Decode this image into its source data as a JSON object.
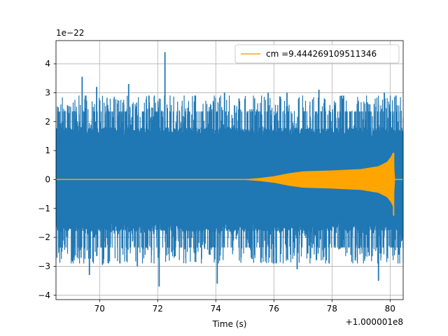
{
  "chart_data": {
    "type": "line",
    "title": "",
    "xlabel": "Time (s)",
    "ylabel": "",
    "x_offset_label": "+1.000001e8",
    "y_scale_label": "1e−22",
    "xlim": [
      68.5,
      80.45
    ],
    "ylim": [
      -4.15,
      4.8
    ],
    "x_ticks": [
      70,
      72,
      74,
      76,
      78,
      80
    ],
    "x_tick_labels": [
      "70",
      "72",
      "74",
      "76",
      "78",
      "80"
    ],
    "y_ticks": [
      -4,
      -3,
      -2,
      -1,
      0,
      1,
      2,
      3,
      4
    ],
    "y_tick_labels": [
      "−4",
      "−3",
      "−2",
      "−1",
      "0",
      "1",
      "2",
      "3",
      "4"
    ],
    "grid": true,
    "legend_position": "top-right",
    "series": [
      {
        "name": "",
        "color": "#1f77b4",
        "kind": "noise",
        "x_range": [
          68.5,
          80.45
        ],
        "envelope_typical": 1.5,
        "envelope_max": 2.35,
        "peaks": [
          {
            "x": 68.95,
            "y": 2.3
          },
          {
            "x": 69.05,
            "y": -2.8
          },
          {
            "x": 69.4,
            "y": 3.55
          },
          {
            "x": 69.65,
            "y": -3.3
          },
          {
            "x": 69.9,
            "y": 3.2
          },
          {
            "x": 70.1,
            "y": -2.95
          },
          {
            "x": 70.5,
            "y": 2.8
          },
          {
            "x": 70.7,
            "y": -2.9
          },
          {
            "x": 71.0,
            "y": 3.3
          },
          {
            "x": 71.3,
            "y": -3.0
          },
          {
            "x": 71.7,
            "y": 2.9
          },
          {
            "x": 72.05,
            "y": -3.7
          },
          {
            "x": 72.25,
            "y": 4.4
          },
          {
            "x": 72.6,
            "y": -2.65
          },
          {
            "x": 73.3,
            "y": 2.9
          },
          {
            "x": 73.8,
            "y": -2.6
          },
          {
            "x": 74.05,
            "y": -3.6
          },
          {
            "x": 74.3,
            "y": 3.0
          },
          {
            "x": 74.8,
            "y": 2.8
          },
          {
            "x": 75.25,
            "y": -2.75
          },
          {
            "x": 75.55,
            "y": -2.85
          },
          {
            "x": 75.8,
            "y": 3.0
          },
          {
            "x": 76.45,
            "y": 3.0
          },
          {
            "x": 76.8,
            "y": -3.1
          },
          {
            "x": 77.55,
            "y": 3.1
          },
          {
            "x": 77.9,
            "y": -2.9
          },
          {
            "x": 78.4,
            "y": 2.9
          },
          {
            "x": 78.8,
            "y": -2.8
          },
          {
            "x": 79.3,
            "y": 2.6
          },
          {
            "x": 79.6,
            "y": -3.5
          },
          {
            "x": 79.8,
            "y": 3.0
          },
          {
            "x": 80.2,
            "y": 2.9
          },
          {
            "x": 80.3,
            "y": -2.6
          }
        ]
      },
      {
        "name": "cm =9.444269109511346",
        "color": "#ffa500",
        "kind": "chirp",
        "x_range": [
          68.5,
          80.45
        ],
        "envelope": [
          {
            "x": 68.5,
            "y": 0.0
          },
          {
            "x": 75.0,
            "y": 0.0
          },
          {
            "x": 75.5,
            "y": 0.04
          },
          {
            "x": 76.0,
            "y": 0.1
          },
          {
            "x": 76.5,
            "y": 0.2
          },
          {
            "x": 77.0,
            "y": 0.27
          },
          {
            "x": 78.0,
            "y": 0.3
          },
          {
            "x": 79.0,
            "y": 0.35
          },
          {
            "x": 79.6,
            "y": 0.45
          },
          {
            "x": 79.9,
            "y": 0.6
          },
          {
            "x": 80.05,
            "y": 0.8
          },
          {
            "x": 80.1,
            "y": 0.92
          },
          {
            "x": 80.12,
            "y": -1.25
          },
          {
            "x": 80.16,
            "y": 0.0
          },
          {
            "x": 80.45,
            "y": 0.0
          }
        ]
      }
    ]
  }
}
